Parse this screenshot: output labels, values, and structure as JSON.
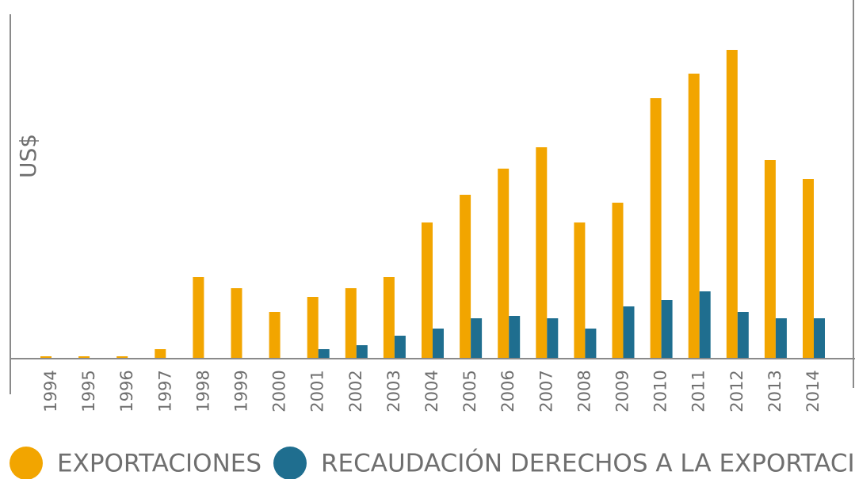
{
  "chart_data": {
    "type": "bar",
    "y_label": "US$",
    "categories": [
      "1994",
      "1995",
      "1996",
      "1997",
      "1998",
      "1999",
      "2000",
      "2001",
      "2002",
      "2003",
      "2004",
      "2005",
      "2006",
      "2007",
      "2008",
      "2009",
      "2010",
      "2011",
      "2012",
      "2013",
      "2014"
    ],
    "series": [
      {
        "name": "EXPORTACIONES",
        "color": "#f2a500",
        "values": [
          3,
          3,
          3,
          12,
          103,
          89,
          59,
          78,
          89,
          103,
          172,
          207,
          240,
          267,
          172,
          197,
          329,
          360,
          390,
          251,
          227
        ]
      },
      {
        "name": "RECAUDACIÓN DERECHOS A LA EXPORTACIÓN",
        "color": "#1f6e8f",
        "values": [
          0,
          0,
          0,
          0,
          0,
          0,
          0,
          12,
          17,
          29,
          38,
          51,
          54,
          51,
          38,
          66,
          74,
          85,
          59,
          51,
          51
        ]
      }
    ],
    "ylim": [
      0,
      440
    ]
  }
}
